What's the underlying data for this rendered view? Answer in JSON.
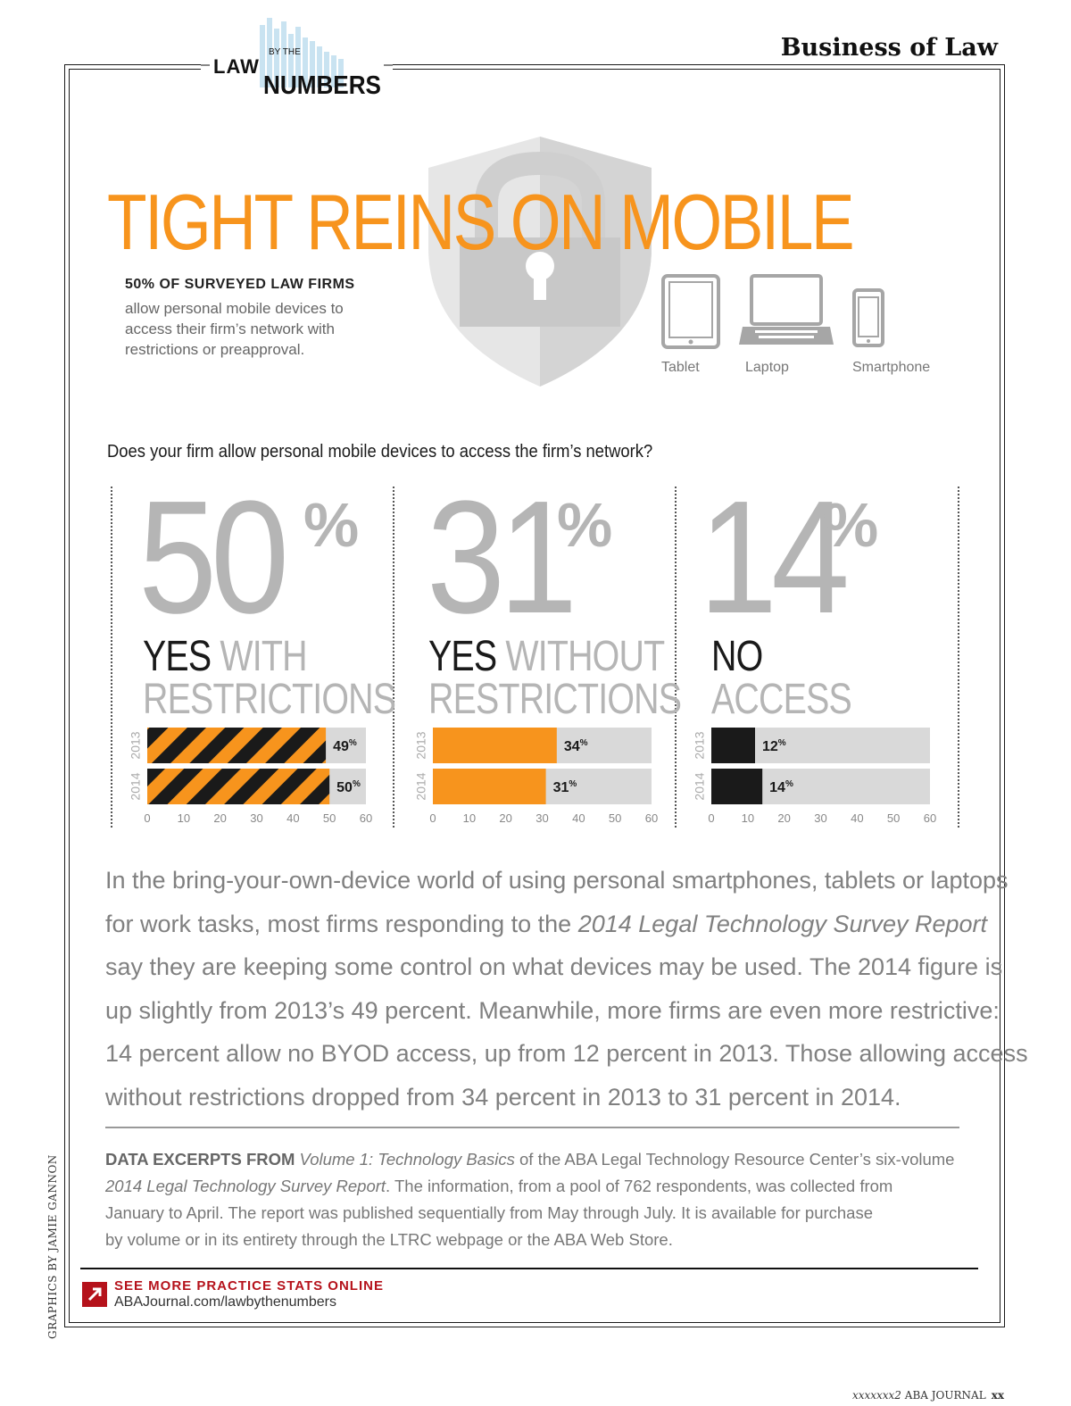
{
  "masthead": {
    "law": "LAW",
    "by_the": "BY THE",
    "numbers": "NUMBERS"
  },
  "section": "Business of Law",
  "title": "TIGHT REINS ON MOBILE",
  "stat": {
    "lead": "50% OF SURVEYED LAW FIRMS",
    "sub": "allow personal mobile devices to access their firm’s network with restrictions or preapproval."
  },
  "devices": [
    {
      "label": "Tablet",
      "icon": "tablet-icon"
    },
    {
      "label": "Laptop",
      "icon": "laptop-icon"
    },
    {
      "label": "Smartphone",
      "icon": "smartphone-icon"
    }
  ],
  "question": "Does your firm allow personal mobile devices to access the firm’s network?",
  "panels": [
    {
      "big": "50",
      "pct": "%",
      "line1_dark": "YES",
      "line1_light": " WITH",
      "line2": "RESTRICTIONS"
    },
    {
      "big": "31",
      "pct": "%",
      "line1_dark": "YES",
      "line1_light": " WITHOUT",
      "line2": "RESTRICTIONS"
    },
    {
      "big": "14",
      "pct": "%",
      "line1_dark": "NO",
      "line1_light": "",
      "line2": "ACCESS"
    }
  ],
  "chart_data": [
    {
      "type": "bar",
      "orientation": "horizontal",
      "title": "YES WITH RESTRICTIONS",
      "categories": [
        "2013",
        "2014"
      ],
      "values": [
        49,
        50
      ],
      "value_labels": [
        "49%",
        "50%"
      ],
      "xlim": [
        0,
        60
      ],
      "xticks": [
        0,
        10,
        20,
        30,
        40,
        50,
        60
      ],
      "fill": "striped orange/black",
      "colors": {
        "bar": "#f7941d",
        "stripe": "#1a1a1a",
        "track": "#d9d9d9"
      }
    },
    {
      "type": "bar",
      "orientation": "horizontal",
      "title": "YES WITHOUT RESTRICTIONS",
      "categories": [
        "2013",
        "2014"
      ],
      "values": [
        34,
        31
      ],
      "value_labels": [
        "34%",
        "31%"
      ],
      "xlim": [
        0,
        60
      ],
      "xticks": [
        0,
        10,
        20,
        30,
        40,
        50,
        60
      ],
      "fill": "solid",
      "colors": {
        "bar": "#f7941d",
        "track": "#d9d9d9"
      }
    },
    {
      "type": "bar",
      "orientation": "horizontal",
      "title": "NO ACCESS",
      "categories": [
        "2013",
        "2014"
      ],
      "values": [
        12,
        14
      ],
      "value_labels": [
        "12%",
        "14%"
      ],
      "xlim": [
        0,
        60
      ],
      "xticks": [
        0,
        10,
        20,
        30,
        40,
        50,
        60
      ],
      "fill": "solid",
      "colors": {
        "bar": "#1a1a1a",
        "track": "#d9d9d9"
      }
    }
  ],
  "body_lines": [
    "In the bring-your-own-device world of using personal smartphones, tablets or laptops",
    [
      "for work tasks, most firms responding to the ",
      "2014 Legal Technology Survey Report"
    ],
    "say they are keeping some control on what devices may be used. The 2014 figure is",
    "up slightly from 2013’s 49 percent. Meanwhile, more firms are even more restrictive:",
    "14 percent allow no BYOD access, up from 12 percent in 2013. Those allowing access",
    "without restrictions dropped from 34 percent in 2013 to 31 percent in 2014."
  ],
  "excerpt": {
    "lead": "DATA EXCERPTS FROM ",
    "vol": "Volume 1: Technology Basics",
    "l1_rest": " of the ABA Legal Technology Resource Center’s six-volume",
    "report": "2014 Legal Technology Survey Report",
    "l2_rest": ". The information, from a pool of 762 respondents, was collected from",
    "l3": "January to April. The report was published sequentially from May through July. It is available for purchase",
    "l4": "by volume or in its entirety through the LTRC webpage or the ABA Web Store."
  },
  "more": {
    "head": "SEE MORE PRACTICE STATS ONLINE",
    "url": "ABAJournal.com/lawbythenumbers"
  },
  "credit": "GRAPHICS BY JAMIE GANNON",
  "folio": {
    "issue": "xxxxxxx2",
    "pub": "ABA JOURNAL",
    "page": "xx"
  },
  "colors": {
    "accent": "#f7941d",
    "gray": "#b5b5b5",
    "red": "#b5121b"
  }
}
